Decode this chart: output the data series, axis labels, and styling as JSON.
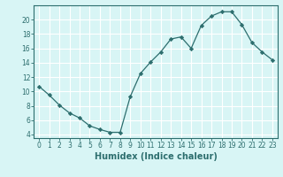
{
  "x": [
    0,
    1,
    2,
    3,
    4,
    5,
    6,
    7,
    8,
    9,
    10,
    11,
    12,
    13,
    14,
    15,
    16,
    17,
    18,
    19,
    20,
    21,
    22,
    23
  ],
  "y": [
    10.7,
    9.5,
    8.1,
    7.0,
    6.3,
    5.2,
    4.7,
    4.3,
    4.3,
    9.3,
    12.5,
    14.1,
    15.5,
    17.3,
    17.6,
    16.0,
    19.2,
    20.5,
    21.1,
    21.1,
    19.3,
    16.8,
    15.5,
    14.4
  ],
  "xlabel": "Humidex (Indice chaleur)",
  "xticks": [
    0,
    1,
    2,
    3,
    4,
    5,
    6,
    7,
    8,
    9,
    10,
    11,
    12,
    13,
    14,
    15,
    16,
    17,
    18,
    19,
    20,
    21,
    22,
    23
  ],
  "yticks": [
    4,
    6,
    8,
    10,
    12,
    14,
    16,
    18,
    20
  ],
  "ylim": [
    3.5,
    22.0
  ],
  "xlim": [
    -0.5,
    23.5
  ],
  "line_color": "#2d6e6e",
  "marker": "D",
  "marker_size": 2.2,
  "bg_color": "#d8f5f5",
  "grid_color": "#ffffff",
  "tick_label_fontsize": 5.5,
  "xlabel_fontsize": 7.0
}
